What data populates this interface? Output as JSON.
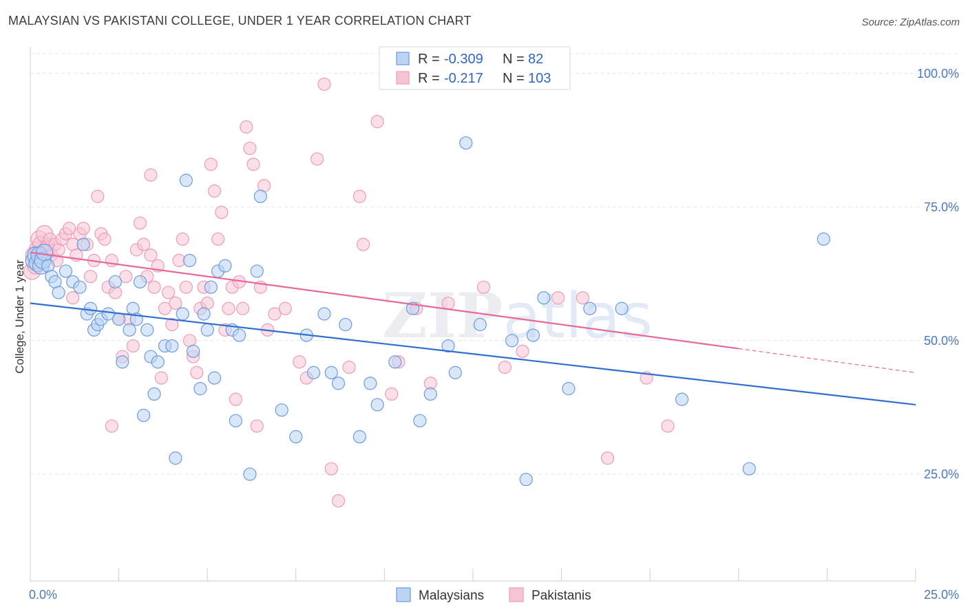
{
  "title": "MALAYSIAN VS PAKISTANI COLLEGE, UNDER 1 YEAR CORRELATION CHART",
  "source": "Source: ZipAtlas.com",
  "watermark": "ZIPatlas",
  "colors": {
    "blue_fill": "#bcd3f3",
    "blue_stroke": "#6b9be0",
    "blue_line": "#2e6fd0",
    "pink_fill": "#f7c4d6",
    "pink_stroke": "#ee9bb8",
    "pink_line": "#e8689a",
    "grid": "#e6e6e6",
    "axis": "#cccccc",
    "tick_label": "#4a78c4"
  },
  "legend": {
    "rows": [
      {
        "series": "Malaysians",
        "r_label": "R =",
        "r_value": "-0.309",
        "n_label": "N =",
        "n_value": "82"
      },
      {
        "series": "Pakistanis",
        "r_label": "R =",
        "r_value": "-0.217",
        "n_label": "N =",
        "n_value": "103"
      }
    ]
  },
  "chart_data": {
    "type": "scatter",
    "title": "MALAYSIAN VS PAKISTANI COLLEGE, UNDER 1 YEAR CORRELATION CHART",
    "xlabel": "",
    "ylabel": "College, Under 1 year",
    "xlim": [
      0,
      25
    ],
    "ylim": [
      5,
      105
    ],
    "x_tick_labels": [
      {
        "value": 0,
        "label": "0.0%"
      },
      {
        "value": 25,
        "label": "25.0%"
      }
    ],
    "y_tick_labels": [
      {
        "value": 25,
        "label": "25.0%"
      },
      {
        "value": 50,
        "label": "50.0%"
      },
      {
        "value": 75,
        "label": "75.0%"
      },
      {
        "value": 100,
        "label": "100.0%"
      }
    ],
    "grid": true,
    "legend_position": "top-center",
    "series": [
      {
        "name": "Malaysians",
        "r": -0.309,
        "n": 82,
        "trend": {
          "x0": 0,
          "y0": 57.0,
          "x1": 25,
          "y1": 38.0
        },
        "points": [
          [
            0.1,
            65
          ],
          [
            0.15,
            66
          ],
          [
            0.2,
            64.5
          ],
          [
            0.25,
            66
          ],
          [
            0.3,
            64
          ],
          [
            0.35,
            65
          ],
          [
            0.4,
            66.5
          ],
          [
            0.5,
            64
          ],
          [
            0.6,
            62
          ],
          [
            0.7,
            61
          ],
          [
            0.8,
            59
          ],
          [
            1.0,
            63
          ],
          [
            1.2,
            61
          ],
          [
            1.4,
            60
          ],
          [
            1.5,
            68
          ],
          [
            1.6,
            55
          ],
          [
            1.7,
            56
          ],
          [
            1.8,
            52
          ],
          [
            1.9,
            53
          ],
          [
            2.0,
            54
          ],
          [
            2.2,
            55
          ],
          [
            2.4,
            61
          ],
          [
            2.5,
            54
          ],
          [
            2.6,
            46
          ],
          [
            2.8,
            52
          ],
          [
            2.9,
            56
          ],
          [
            3.0,
            54
          ],
          [
            3.1,
            61
          ],
          [
            3.2,
            36
          ],
          [
            3.3,
            52
          ],
          [
            3.4,
            47
          ],
          [
            3.5,
            40
          ],
          [
            3.6,
            46
          ],
          [
            3.8,
            49
          ],
          [
            4.0,
            49
          ],
          [
            4.1,
            28
          ],
          [
            4.3,
            55
          ],
          [
            4.4,
            80
          ],
          [
            4.5,
            65
          ],
          [
            4.6,
            48
          ],
          [
            4.8,
            41
          ],
          [
            4.9,
            55
          ],
          [
            5.0,
            52
          ],
          [
            5.1,
            60
          ],
          [
            5.2,
            43
          ],
          [
            5.3,
            63
          ],
          [
            5.5,
            64
          ],
          [
            5.7,
            52
          ],
          [
            5.8,
            35
          ],
          [
            5.9,
            51
          ],
          [
            6.2,
            25
          ],
          [
            6.4,
            63
          ],
          [
            6.5,
            77
          ],
          [
            7.1,
            37
          ],
          [
            7.5,
            32
          ],
          [
            7.8,
            51
          ],
          [
            8.0,
            44
          ],
          [
            8.3,
            55
          ],
          [
            8.5,
            44
          ],
          [
            8.7,
            42
          ],
          [
            8.9,
            53
          ],
          [
            9.3,
            32
          ],
          [
            9.6,
            42
          ],
          [
            9.8,
            38
          ],
          [
            10.3,
            46
          ],
          [
            10.8,
            56
          ],
          [
            11.0,
            35
          ],
          [
            11.3,
            40
          ],
          [
            11.8,
            49
          ],
          [
            12.0,
            44
          ],
          [
            12.3,
            87
          ],
          [
            12.7,
            53
          ],
          [
            13.6,
            50
          ],
          [
            14.0,
            24
          ],
          [
            14.2,
            51
          ],
          [
            14.5,
            58
          ],
          [
            15.2,
            41
          ],
          [
            15.8,
            56
          ],
          [
            16.7,
            56
          ],
          [
            18.4,
            39
          ],
          [
            20.3,
            26
          ],
          [
            22.4,
            69
          ]
        ]
      },
      {
        "name": "Pakistanis",
        "r": -0.217,
        "n": 103,
        "trend": {
          "x0": 0,
          "y0": 66.5,
          "x1": 20,
          "y1": 48.5
        },
        "trend_dashed": {
          "x0": 20,
          "y0": 48.5,
          "x1": 25,
          "y1": 44.0
        },
        "points": [
          [
            0.05,
            63
          ],
          [
            0.1,
            66
          ],
          [
            0.15,
            64
          ],
          [
            0.2,
            67
          ],
          [
            0.25,
            69
          ],
          [
            0.3,
            68
          ],
          [
            0.35,
            65
          ],
          [
            0.4,
            70
          ],
          [
            0.45,
            67
          ],
          [
            0.5,
            68
          ],
          [
            0.55,
            69
          ],
          [
            0.6,
            66
          ],
          [
            0.7,
            68
          ],
          [
            0.75,
            65
          ],
          [
            0.8,
            67
          ],
          [
            0.9,
            69
          ],
          [
            1.0,
            70
          ],
          [
            1.1,
            71
          ],
          [
            1.2,
            68
          ],
          [
            1.3,
            66
          ],
          [
            1.4,
            70
          ],
          [
            1.5,
            71
          ],
          [
            1.6,
            68
          ],
          [
            1.7,
            62
          ],
          [
            1.8,
            65
          ],
          [
            1.9,
            77
          ],
          [
            2.0,
            70
          ],
          [
            2.1,
            69
          ],
          [
            2.2,
            60
          ],
          [
            2.3,
            65
          ],
          [
            2.4,
            59
          ],
          [
            2.5,
            54
          ],
          [
            2.6,
            47
          ],
          [
            2.7,
            62
          ],
          [
            2.8,
            54
          ],
          [
            2.9,
            49
          ],
          [
            3.0,
            67
          ],
          [
            3.1,
            72
          ],
          [
            3.2,
            68
          ],
          [
            3.3,
            62
          ],
          [
            3.4,
            66
          ],
          [
            3.5,
            60
          ],
          [
            3.6,
            64
          ],
          [
            3.7,
            43
          ],
          [
            3.8,
            56
          ],
          [
            3.9,
            59
          ],
          [
            4.0,
            53
          ],
          [
            4.1,
            57
          ],
          [
            4.2,
            65
          ],
          [
            4.3,
            69
          ],
          [
            4.4,
            60
          ],
          [
            4.5,
            50
          ],
          [
            4.6,
            47
          ],
          [
            4.7,
            44
          ],
          [
            4.8,
            56
          ],
          [
            4.9,
            60
          ],
          [
            5.0,
            57
          ],
          [
            5.1,
            83
          ],
          [
            5.2,
            78
          ],
          [
            5.3,
            69
          ],
          [
            5.4,
            74
          ],
          [
            5.5,
            52
          ],
          [
            5.6,
            56
          ],
          [
            5.7,
            60
          ],
          [
            5.8,
            39
          ],
          [
            5.9,
            61
          ],
          [
            6.0,
            56
          ],
          [
            6.1,
            90
          ],
          [
            6.2,
            86
          ],
          [
            6.3,
            83
          ],
          [
            6.4,
            34
          ],
          [
            6.5,
            60
          ],
          [
            6.6,
            79
          ],
          [
            6.7,
            52
          ],
          [
            6.9,
            55
          ],
          [
            7.2,
            56
          ],
          [
            7.6,
            46
          ],
          [
            7.8,
            43
          ],
          [
            8.1,
            84
          ],
          [
            8.3,
            98
          ],
          [
            8.5,
            26
          ],
          [
            8.7,
            20
          ],
          [
            9.0,
            45
          ],
          [
            9.3,
            77
          ],
          [
            9.4,
            68
          ],
          [
            9.8,
            91
          ],
          [
            10.2,
            40
          ],
          [
            10.4,
            46
          ],
          [
            10.9,
            56
          ],
          [
            11.3,
            42
          ],
          [
            11.8,
            57
          ],
          [
            12.4,
            100
          ],
          [
            12.8,
            60
          ],
          [
            13.4,
            45
          ],
          [
            13.9,
            48
          ],
          [
            14.9,
            58
          ],
          [
            15.6,
            58
          ],
          [
            16.3,
            28
          ],
          [
            17.4,
            43
          ],
          [
            18.0,
            34
          ],
          [
            2.3,
            34
          ],
          [
            1.2,
            58
          ],
          [
            3.4,
            81
          ]
        ]
      }
    ]
  },
  "bottom_legend": [
    {
      "label": "Malaysians"
    },
    {
      "label": "Pakistanis"
    }
  ]
}
